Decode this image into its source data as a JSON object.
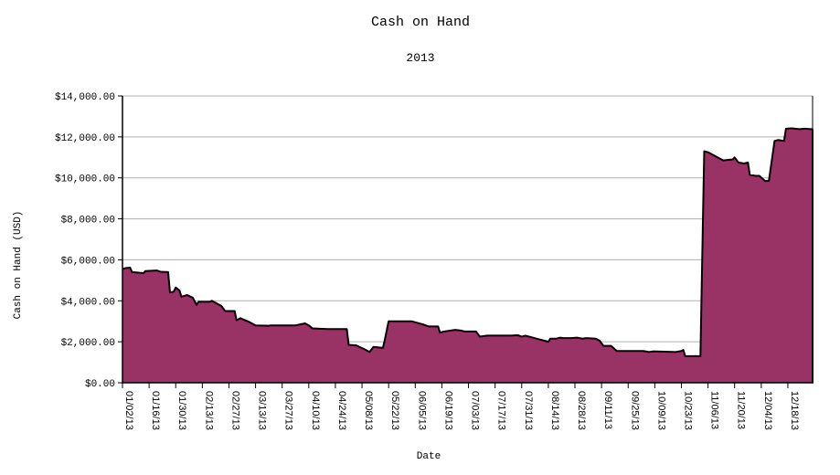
{
  "chart_data": {
    "type": "area",
    "title": "Cash on Hand",
    "subtitle": "2013",
    "xlabel": "Date",
    "ylabel": "Cash on Hand (USD)",
    "ylim": [
      0,
      14000
    ],
    "y_ticks": [
      0,
      2000,
      4000,
      6000,
      8000,
      10000,
      12000,
      14000
    ],
    "y_tick_labels": [
      "$0.00",
      "$2,000.00",
      "$4,000.00",
      "$6,000.00",
      "$8,000.00",
      "$10,000.00",
      "$12,000.00",
      "$14,000.00"
    ],
    "x_tick_labels": [
      "01/02/13",
      "01/16/13",
      "01/30/13",
      "02/13/13",
      "02/27/13",
      "03/13/13",
      "03/27/13",
      "04/10/13",
      "04/24/13",
      "05/08/13",
      "05/22/13",
      "06/05/13",
      "06/19/13",
      "07/03/13",
      "07/17/13",
      "07/31/13",
      "08/14/13",
      "08/28/13",
      "09/11/13",
      "09/25/13",
      "10/09/13",
      "10/23/13",
      "11/06/13",
      "11/20/13",
      "12/04/13",
      "12/18/13"
    ],
    "xlim": [
      "01/02/13",
      "12/31/13"
    ],
    "grid": "horizontal",
    "fill_color": "#993366",
    "line_color": "#000000",
    "series": [
      {
        "points": [
          [
            "01/02/13",
            5550
          ],
          [
            "01/04/13",
            5600
          ],
          [
            "01/06/13",
            5620
          ],
          [
            "01/07/13",
            5400
          ],
          [
            "01/13/13",
            5350
          ],
          [
            "01/14/13",
            5450
          ],
          [
            "01/20/13",
            5480
          ],
          [
            "01/22/13",
            5420
          ],
          [
            "01/26/13",
            5400
          ],
          [
            "01/27/13",
            4400
          ],
          [
            "01/29/13",
            4450
          ],
          [
            "01/30/13",
            4650
          ],
          [
            "02/01/13",
            4500
          ],
          [
            "02/02/13",
            4200
          ],
          [
            "02/05/13",
            4280
          ],
          [
            "02/08/13",
            4150
          ],
          [
            "02/10/13",
            3800
          ],
          [
            "02/11/13",
            3950
          ],
          [
            "02/17/13",
            3950
          ],
          [
            "02/18/13",
            4000
          ],
          [
            "02/21/13",
            3850
          ],
          [
            "02/23/13",
            3750
          ],
          [
            "02/25/13",
            3500
          ],
          [
            "03/02/13",
            3500
          ],
          [
            "03/03/13",
            3050
          ],
          [
            "03/05/13",
            3150
          ],
          [
            "03/10/13",
            2950
          ],
          [
            "03/13/13",
            2800
          ],
          [
            "03/20/13",
            2780
          ],
          [
            "03/21/13",
            2800
          ],
          [
            "04/03/13",
            2800
          ],
          [
            "04/08/13",
            2900
          ],
          [
            "04/10/13",
            2800
          ],
          [
            "04/12/13",
            2650
          ],
          [
            "04/20/13",
            2620
          ],
          [
            "04/30/13",
            2620
          ],
          [
            "05/01/13",
            1850
          ],
          [
            "05/05/13",
            1820
          ],
          [
            "05/09/13",
            1650
          ],
          [
            "05/12/13",
            1500
          ],
          [
            "05/14/13",
            1750
          ],
          [
            "05/19/13",
            1700
          ],
          [
            "05/20/13",
            2100
          ],
          [
            "05/22/13",
            3000
          ],
          [
            "06/03/13",
            3000
          ],
          [
            "06/09/13",
            2850
          ],
          [
            "06/12/13",
            2750
          ],
          [
            "06/17/13",
            2750
          ],
          [
            "06/18/13",
            2450
          ],
          [
            "06/20/13",
            2500
          ],
          [
            "06/26/13",
            2580
          ],
          [
            "06/29/13",
            2550
          ],
          [
            "07/01/13",
            2500
          ],
          [
            "07/07/13",
            2500
          ],
          [
            "07/09/13",
            2250
          ],
          [
            "07/13/13",
            2300
          ],
          [
            "07/25/13",
            2300
          ],
          [
            "07/29/13",
            2320
          ],
          [
            "07/31/13",
            2250
          ],
          [
            "08/02/13",
            2300
          ],
          [
            "08/08/13",
            2150
          ],
          [
            "08/12/13",
            2050
          ],
          [
            "08/14/13",
            2000
          ],
          [
            "08/15/13",
            2150
          ],
          [
            "08/18/13",
            2150
          ],
          [
            "08/20/13",
            2200
          ],
          [
            "08/22/13",
            2180
          ],
          [
            "08/26/13",
            2180
          ],
          [
            "08/29/13",
            2200
          ],
          [
            "09/01/13",
            2150
          ],
          [
            "09/03/13",
            2180
          ],
          [
            "09/08/13",
            2150
          ],
          [
            "09/10/13",
            2050
          ],
          [
            "09/12/13",
            1800
          ],
          [
            "09/16/13",
            1800
          ],
          [
            "09/19/13",
            1550
          ],
          [
            "09/22/13",
            1550
          ],
          [
            "10/03/13",
            1550
          ],
          [
            "10/06/13",
            1500
          ],
          [
            "10/08/13",
            1530
          ],
          [
            "10/20/13",
            1500
          ],
          [
            "10/23/13",
            1550
          ],
          [
            "10/24/13",
            1600
          ],
          [
            "10/25/13",
            1300
          ],
          [
            "10/30/13",
            1300
          ],
          [
            "11/02/13",
            1300
          ],
          [
            "11/04/13",
            11300
          ],
          [
            "11/06/13",
            11250
          ],
          [
            "11/10/13",
            11050
          ],
          [
            "11/14/13",
            10850
          ],
          [
            "11/19/13",
            10900
          ],
          [
            "11/20/13",
            11000
          ],
          [
            "11/22/13",
            10750
          ],
          [
            "11/25/13",
            10700
          ],
          [
            "11/27/13",
            10750
          ],
          [
            "11/28/13",
            10150
          ],
          [
            "12/01/13",
            10100
          ],
          [
            "12/03/13",
            10100
          ],
          [
            "12/06/13",
            9850
          ],
          [
            "12/08/13",
            9850
          ],
          [
            "12/11/13",
            11800
          ],
          [
            "12/13/13",
            11850
          ],
          [
            "12/16/13",
            11800
          ],
          [
            "12/17/13",
            12400
          ],
          [
            "12/20/13",
            12420
          ],
          [
            "12/24/13",
            12380
          ],
          [
            "12/27/13",
            12400
          ],
          [
            "12/30/13",
            12380
          ],
          [
            "12/31/13",
            12380
          ]
        ]
      }
    ]
  }
}
